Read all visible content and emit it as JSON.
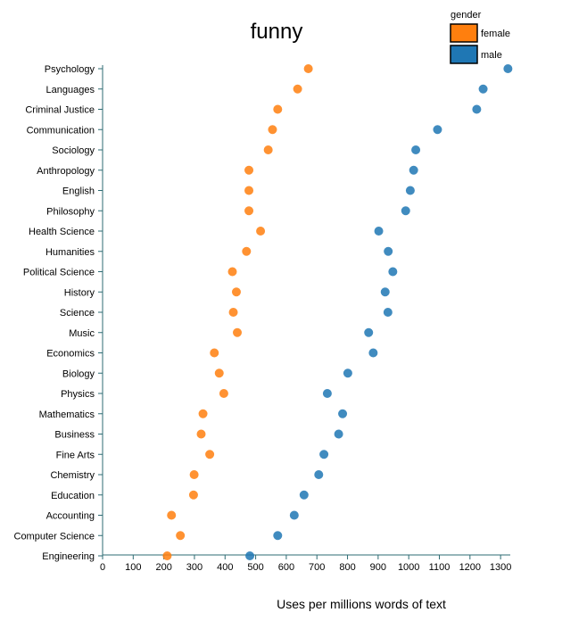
{
  "chart_data": {
    "type": "scatter",
    "title": "funny",
    "xlabel": "Uses per millions words of text",
    "ylabel": "",
    "xlim": [
      0,
      1320
    ],
    "xticks": [
      0,
      100,
      200,
      300,
      400,
      500,
      600,
      700,
      800,
      900,
      1000,
      1100,
      1200,
      1300
    ],
    "legend": {
      "title": "gender",
      "placement": "top-right",
      "entries": [
        {
          "name": "female",
          "color": "#ff7f0e"
        },
        {
          "name": "male",
          "color": "#1f77b4"
        }
      ]
    },
    "categories": [
      "Psychology",
      "Languages",
      "Criminal Justice",
      "Communication",
      "Sociology",
      "Anthropology",
      "English",
      "Philosophy",
      "Health Science",
      "Humanities",
      "Political Science",
      "History",
      "Science",
      "Music",
      "Economics",
      "Biology",
      "Physics",
      "Mathematics",
      "Business",
      "Fine Arts",
      "Chemistry",
      "Education",
      "Accounting",
      "Computer Science",
      "Engineering"
    ],
    "series": [
      {
        "name": "female",
        "color": "#ff7f0e",
        "values": [
          672,
          637,
          572,
          555,
          541,
          478,
          478,
          478,
          516,
          470,
          424,
          437,
          427,
          440,
          365,
          381,
          396,
          328,
          322,
          350,
          299,
          297,
          225,
          254,
          211
        ]
      },
      {
        "name": "male",
        "color": "#1f77b4",
        "values": [
          1324,
          1243,
          1222,
          1094,
          1023,
          1016,
          1005,
          990,
          902,
          933,
          948,
          923,
          932,
          869,
          884,
          801,
          734,
          784,
          771,
          723,
          706,
          658,
          626,
          572,
          481
        ]
      }
    ]
  }
}
